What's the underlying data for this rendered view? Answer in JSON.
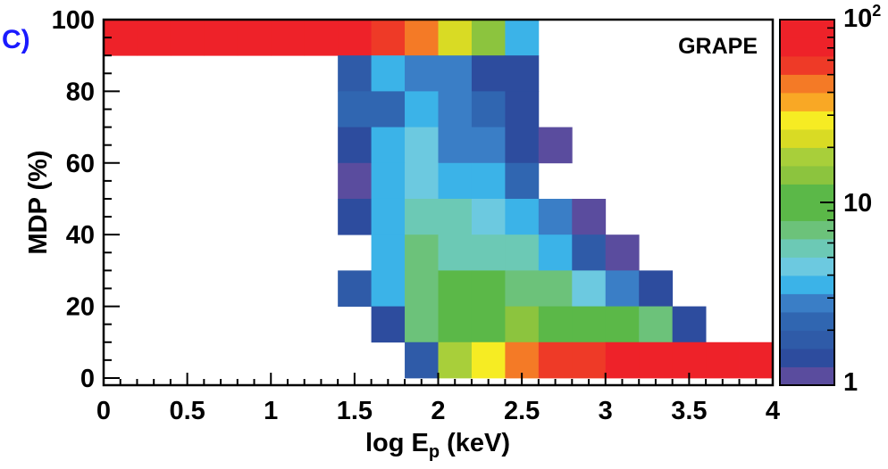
{
  "panel_label": "C)",
  "chart_data": {
    "type": "heatmap",
    "title": "GRAPE",
    "xlabel": {
      "main": "log E",
      "sub": "p",
      "unit": "(keV)"
    },
    "ylabel": "MDP (%)",
    "xlim": [
      0,
      4
    ],
    "ylim": [
      -2,
      100
    ],
    "x_ticks": [
      0,
      0.5,
      1,
      1.5,
      2,
      2.5,
      3,
      3.5,
      4
    ],
    "x_tick_labels": [
      "0",
      "0.5",
      "1",
      "1.5",
      "2",
      "2.5",
      "3",
      "3.5",
      "4"
    ],
    "y_ticks": [
      0,
      20,
      40,
      60,
      80,
      100
    ],
    "y_tick_labels": [
      "0",
      "20",
      "40",
      "60",
      "80",
      "100"
    ],
    "bin_width_x": 0.2,
    "bin_height_y": 10,
    "cells": [
      {
        "x": 0.0,
        "y": 95,
        "color": "#ee2229"
      },
      {
        "x": 0.2,
        "y": 95,
        "color": "#ee2229"
      },
      {
        "x": 0.4,
        "y": 95,
        "color": "#ee2229"
      },
      {
        "x": 0.6,
        "y": 95,
        "color": "#ee2229"
      },
      {
        "x": 0.8,
        "y": 95,
        "color": "#ee2229"
      },
      {
        "x": 1.0,
        "y": 95,
        "color": "#ee2229"
      },
      {
        "x": 1.2,
        "y": 95,
        "color": "#ee2229"
      },
      {
        "x": 1.4,
        "y": 95,
        "color": "#ee2229"
      },
      {
        "x": 1.6,
        "y": 95,
        "color": "#ee3a27"
      },
      {
        "x": 1.8,
        "y": 95,
        "color": "#f47a26"
      },
      {
        "x": 2.0,
        "y": 95,
        "color": "#d9db24"
      },
      {
        "x": 2.2,
        "y": 95,
        "color": "#8cc43e"
      },
      {
        "x": 2.4,
        "y": 95,
        "color": "#3bb3e8"
      },
      {
        "x": 1.4,
        "y": 85,
        "color": "#2f5ba8"
      },
      {
        "x": 1.6,
        "y": 85,
        "color": "#3bb3e8"
      },
      {
        "x": 1.8,
        "y": 85,
        "color": "#3a7ec6"
      },
      {
        "x": 2.0,
        "y": 85,
        "color": "#3a7ec6"
      },
      {
        "x": 2.2,
        "y": 85,
        "color": "#2d4c9e"
      },
      {
        "x": 2.4,
        "y": 85,
        "color": "#2d4c9e"
      },
      {
        "x": 1.4,
        "y": 75,
        "color": "#3066b1"
      },
      {
        "x": 1.6,
        "y": 75,
        "color": "#3066b1"
      },
      {
        "x": 1.8,
        "y": 75,
        "color": "#3bb3e8"
      },
      {
        "x": 2.0,
        "y": 75,
        "color": "#3a7ec6"
      },
      {
        "x": 2.2,
        "y": 75,
        "color": "#3066b1"
      },
      {
        "x": 2.4,
        "y": 75,
        "color": "#2d4c9e"
      },
      {
        "x": 1.4,
        "y": 65,
        "color": "#2d4c9e"
      },
      {
        "x": 1.6,
        "y": 65,
        "color": "#3bb3e8"
      },
      {
        "x": 1.8,
        "y": 65,
        "color": "#6cc9e0"
      },
      {
        "x": 2.0,
        "y": 65,
        "color": "#3a7ec6"
      },
      {
        "x": 2.2,
        "y": 65,
        "color": "#3a7ec6"
      },
      {
        "x": 2.4,
        "y": 65,
        "color": "#2d4c9e"
      },
      {
        "x": 2.6,
        "y": 65,
        "color": "#5a4c9e"
      },
      {
        "x": 1.4,
        "y": 55,
        "color": "#5a4c9e"
      },
      {
        "x": 1.6,
        "y": 55,
        "color": "#3bb3e8"
      },
      {
        "x": 1.8,
        "y": 55,
        "color": "#6cc9e0"
      },
      {
        "x": 2.0,
        "y": 55,
        "color": "#3bb3e8"
      },
      {
        "x": 2.2,
        "y": 55,
        "color": "#3bb3e8"
      },
      {
        "x": 2.4,
        "y": 55,
        "color": "#3066b1"
      },
      {
        "x": 1.4,
        "y": 45,
        "color": "#2d4c9e"
      },
      {
        "x": 1.6,
        "y": 45,
        "color": "#3bb3e8"
      },
      {
        "x": 1.8,
        "y": 45,
        "color": "#6cc9b5"
      },
      {
        "x": 2.0,
        "y": 45,
        "color": "#6cc9b5"
      },
      {
        "x": 2.2,
        "y": 45,
        "color": "#6cc9e0"
      },
      {
        "x": 2.4,
        "y": 45,
        "color": "#3bb3e8"
      },
      {
        "x": 2.6,
        "y": 45,
        "color": "#3a7ec6"
      },
      {
        "x": 2.8,
        "y": 45,
        "color": "#5a4c9e"
      },
      {
        "x": 1.6,
        "y": 35,
        "color": "#3bb3e8"
      },
      {
        "x": 1.8,
        "y": 35,
        "color": "#6cc27a"
      },
      {
        "x": 2.0,
        "y": 35,
        "color": "#6cc9b5"
      },
      {
        "x": 2.2,
        "y": 35,
        "color": "#6cc9b5"
      },
      {
        "x": 2.4,
        "y": 35,
        "color": "#6cc9b5"
      },
      {
        "x": 2.6,
        "y": 35,
        "color": "#3bb3e8"
      },
      {
        "x": 2.8,
        "y": 35,
        "color": "#2f5ba8"
      },
      {
        "x": 3.0,
        "y": 35,
        "color": "#5a4c9e"
      },
      {
        "x": 1.4,
        "y": 25,
        "color": "#2f5ba8"
      },
      {
        "x": 1.6,
        "y": 25,
        "color": "#3bb3e8"
      },
      {
        "x": 1.8,
        "y": 25,
        "color": "#6cc27a"
      },
      {
        "x": 2.0,
        "y": 25,
        "color": "#5bb848"
      },
      {
        "x": 2.2,
        "y": 25,
        "color": "#5bb848"
      },
      {
        "x": 2.4,
        "y": 25,
        "color": "#6cc27a"
      },
      {
        "x": 2.6,
        "y": 25,
        "color": "#6cc27a"
      },
      {
        "x": 2.8,
        "y": 25,
        "color": "#6cc9e0"
      },
      {
        "x": 3.0,
        "y": 25,
        "color": "#3a7ec6"
      },
      {
        "x": 3.2,
        "y": 25,
        "color": "#2d4c9e"
      },
      {
        "x": 1.6,
        "y": 15,
        "color": "#2d4c9e"
      },
      {
        "x": 1.8,
        "y": 15,
        "color": "#6cc27a"
      },
      {
        "x": 2.0,
        "y": 15,
        "color": "#5bb848"
      },
      {
        "x": 2.2,
        "y": 15,
        "color": "#5bb848"
      },
      {
        "x": 2.4,
        "y": 15,
        "color": "#8cc43e"
      },
      {
        "x": 2.6,
        "y": 15,
        "color": "#5bb848"
      },
      {
        "x": 2.8,
        "y": 15,
        "color": "#5bb848"
      },
      {
        "x": 3.0,
        "y": 15,
        "color": "#5bb848"
      },
      {
        "x": 3.2,
        "y": 15,
        "color": "#6cc27a"
      },
      {
        "x": 3.4,
        "y": 15,
        "color": "#2d4c9e"
      },
      {
        "x": 1.8,
        "y": 5,
        "color": "#2f5ba8"
      },
      {
        "x": 2.0,
        "y": 5,
        "color": "#a8cf3a"
      },
      {
        "x": 2.2,
        "y": 5,
        "color": "#f6ec23"
      },
      {
        "x": 2.4,
        "y": 5,
        "color": "#f47a26"
      },
      {
        "x": 2.6,
        "y": 5,
        "color": "#ee3a27"
      },
      {
        "x": 2.8,
        "y": 5,
        "color": "#ee3a27"
      },
      {
        "x": 3.0,
        "y": 5,
        "color": "#ee2229"
      },
      {
        "x": 3.2,
        "y": 5,
        "color": "#ee2229"
      },
      {
        "x": 3.4,
        "y": 5,
        "color": "#ee2229"
      },
      {
        "x": 3.6,
        "y": 5,
        "color": "#ee2229"
      },
      {
        "x": 3.8,
        "y": 5,
        "color": "#ee2229"
      }
    ],
    "colorbar": {
      "scale": "log",
      "range": [
        1,
        100
      ],
      "tick_labels": [
        {
          "value": 1,
          "base": "1",
          "exp": ""
        },
        {
          "value": 10,
          "base": "10",
          "exp": ""
        },
        {
          "value": 100,
          "base": "10",
          "exp": "2"
        }
      ],
      "colors_bottom_to_top": [
        "#5a4c9e",
        "#2d4c9e",
        "#2f5ba8",
        "#3066b1",
        "#3a7ec6",
        "#3bb3e8",
        "#6cc9e0",
        "#6cc9b5",
        "#6cc27a",
        "#5bb848",
        "#5bb848",
        "#8cc43e",
        "#a8cf3a",
        "#d9db24",
        "#f6ec23",
        "#f9a825",
        "#f47a26",
        "#ee3a27",
        "#ee2229",
        "#ee2229"
      ]
    }
  }
}
